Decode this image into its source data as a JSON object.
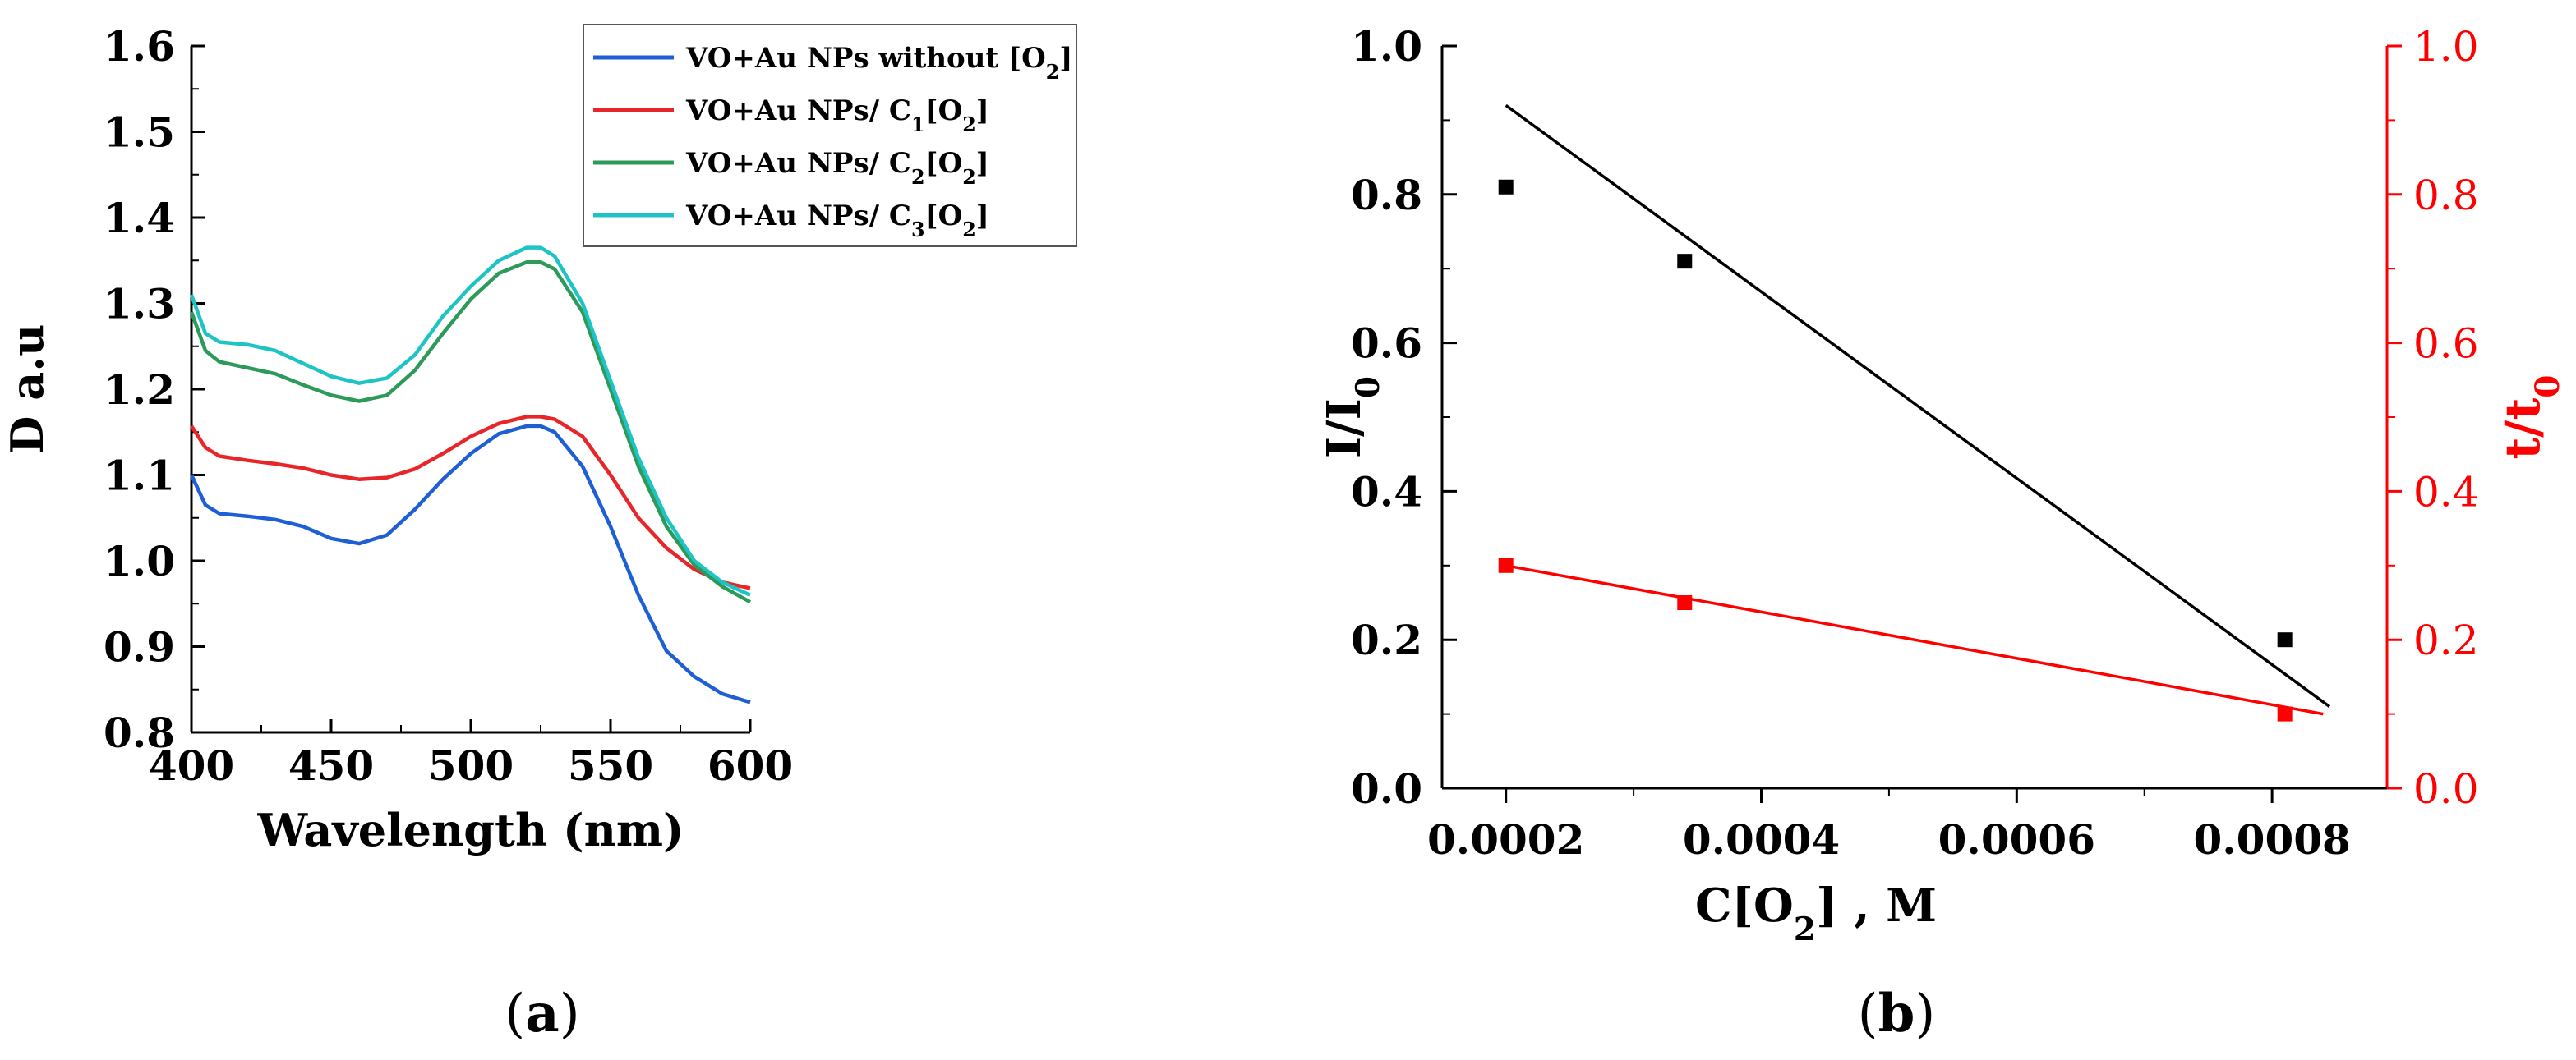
{
  "chart_data": [
    {
      "id": "a",
      "type": "line",
      "panel_label": {
        "open": "(",
        "letter": "a",
        "close": ")"
      },
      "xlabel": "Wavelength (nm)",
      "ylabel": "D a.u",
      "xlim": [
        400,
        600
      ],
      "ylim": [
        0.8,
        1.6
      ],
      "xticks": [
        400,
        450,
        500,
        550,
        600
      ],
      "yticks": [
        0.8,
        0.9,
        1.0,
        1.1,
        1.2,
        1.3,
        1.4,
        1.5,
        1.6
      ],
      "grid": false,
      "legend_position": "top-right",
      "x": [
        400,
        405,
        410,
        420,
        430,
        440,
        450,
        460,
        470,
        480,
        490,
        500,
        510,
        520,
        525,
        530,
        540,
        550,
        560,
        570,
        580,
        590,
        600
      ],
      "series": [
        {
          "name": "VO+Au NPs without [O2]",
          "legend": {
            "base": "VO+Au NPs without [O",
            "sub": "2",
            "tail": "]"
          },
          "color": "#1f5fd6",
          "values": [
            1.1,
            1.065,
            1.055,
            1.052,
            1.048,
            1.04,
            1.026,
            1.02,
            1.03,
            1.06,
            1.095,
            1.125,
            1.148,
            1.157,
            1.157,
            1.15,
            1.11,
            1.04,
            0.96,
            0.895,
            0.865,
            0.845,
            0.835
          ]
        },
        {
          "name": "VO+Au NPs/ C1[O2]",
          "legend": {
            "base": "VO+Au NPs/ C",
            "sub": "1",
            "mid": "[O",
            "sub2": "2",
            "tail": "]"
          },
          "color": "#e8262a",
          "values": [
            1.157,
            1.132,
            1.122,
            1.117,
            1.113,
            1.108,
            1.1,
            1.095,
            1.097,
            1.107,
            1.125,
            1.145,
            1.16,
            1.168,
            1.168,
            1.165,
            1.145,
            1.1,
            1.05,
            1.015,
            0.99,
            0.975,
            0.968
          ]
        },
        {
          "name": "VO+Au NPs/ C2[O2]",
          "legend": {
            "base": "VO+Au NPs/ C",
            "sub": "2",
            "mid": "[O",
            "sub2": "2",
            "tail": "]"
          },
          "color": "#2e9a5a",
          "values": [
            1.29,
            1.245,
            1.232,
            1.225,
            1.218,
            1.205,
            1.193,
            1.186,
            1.193,
            1.222,
            1.265,
            1.305,
            1.335,
            1.348,
            1.348,
            1.34,
            1.29,
            1.2,
            1.11,
            1.04,
            0.995,
            0.97,
            0.952
          ]
        },
        {
          "name": "VO+Au NPs/ C3[O2]",
          "legend": {
            "base": "VO+Au NPs/ C",
            "sub": "3",
            "mid": "[O",
            "sub2": "2",
            "tail": "]"
          },
          "color": "#1ec4c4",
          "values": [
            1.31,
            1.265,
            1.255,
            1.252,
            1.245,
            1.23,
            1.215,
            1.207,
            1.213,
            1.24,
            1.285,
            1.32,
            1.35,
            1.365,
            1.365,
            1.355,
            1.3,
            1.21,
            1.12,
            1.05,
            1.0,
            0.975,
            0.96
          ]
        }
      ]
    },
    {
      "id": "b",
      "type": "scatter",
      "panel_label": {
        "open": "(",
        "letter": "b",
        "close": ")"
      },
      "xlabel": {
        "base": "C[O",
        "sub": "2",
        "tail": "] , M"
      },
      "ylabel_left": {
        "base": "I/I",
        "sub": "0"
      },
      "ylabel_right": {
        "base": "t/t",
        "sub": "0"
      },
      "xlim": [
        0.00015,
        0.00089
      ],
      "ylim": [
        0.0,
        1.0
      ],
      "xticks": [
        "0.0002",
        "0.0004",
        "0.0006",
        "0.0008"
      ],
      "xtick_values": [
        0.0002,
        0.0004,
        0.0006,
        0.0008
      ],
      "yticks": [
        "0.0",
        "0.2",
        "0.4",
        "0.6",
        "0.8",
        "1.0"
      ],
      "ytick_values": [
        0.0,
        0.2,
        0.4,
        0.6,
        0.8,
        1.0
      ],
      "grid": false,
      "series": [
        {
          "name": "I/I0",
          "axis": "left",
          "color": "#000000",
          "axis_color": "#000000",
          "x": [
            0.0002,
            0.00034,
            0.00081
          ],
          "y": [
            0.81,
            0.71,
            0.2
          ],
          "fit_line": {
            "x": [
              0.0002,
              0.000845
            ],
            "y": [
              0.92,
              0.11
            ]
          }
        },
        {
          "name": "t/t0",
          "axis": "right",
          "color": "#ff0000",
          "axis_color": "#ff0000",
          "x": [
            0.0002,
            0.00034,
            0.00081
          ],
          "y": [
            0.3,
            0.25,
            0.1
          ],
          "fit_line": {
            "x": [
              0.0002,
              0.00084
            ],
            "y": [
              0.3,
              0.1
            ]
          }
        }
      ]
    }
  ]
}
